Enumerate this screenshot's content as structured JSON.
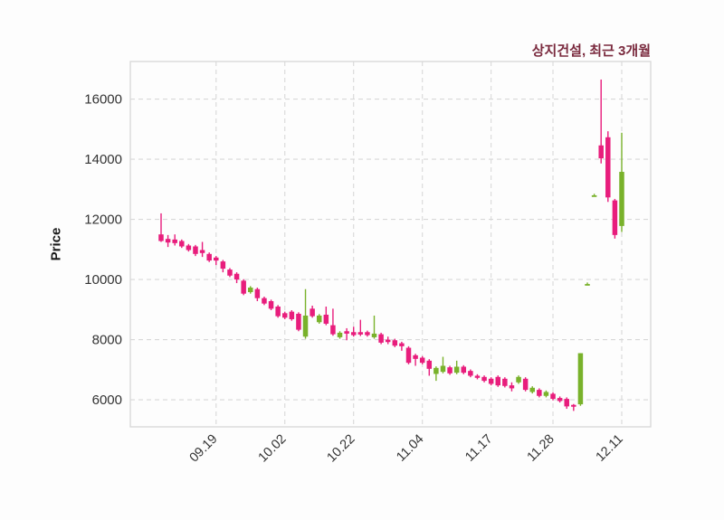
{
  "chart_data": {
    "type": "candlestick",
    "title": "상지건설, 최근 3개월",
    "ylabel": "Price",
    "xlabel": "",
    "legend": null,
    "grid": "dashed",
    "ylim": [
      5100,
      17250
    ],
    "y_ticks": [
      6000,
      8000,
      10000,
      12000,
      14000,
      16000
    ],
    "x_ticks": [
      {
        "label": "09.19",
        "index": 8
      },
      {
        "label": "10.02",
        "index": 18
      },
      {
        "label": "10.22",
        "index": 28
      },
      {
        "label": "11.04",
        "index": 38
      },
      {
        "label": "11.17",
        "index": 48
      },
      {
        "label": "11.28",
        "index": 57
      },
      {
        "label": "12.11",
        "index": 67
      }
    ],
    "colors": {
      "up": "#79B22B",
      "down": "#E81D7C",
      "title_text": "#7A2A3E",
      "axis_text": "#333333",
      "grid_line": "#D8D8D8",
      "plot_border": "#D9D9D9",
      "background": "#FDFDFD"
    },
    "candle_format": [
      "open",
      "high",
      "low",
      "close"
    ],
    "candles": [
      [
        11500,
        12200,
        11250,
        11280
      ],
      [
        11350,
        11480,
        11080,
        11230
      ],
      [
        11330,
        11500,
        11130,
        11210
      ],
      [
        11280,
        11330,
        11050,
        11100
      ],
      [
        11130,
        11180,
        10930,
        10980
      ],
      [
        11100,
        11150,
        10780,
        10850
      ],
      [
        10980,
        11250,
        10750,
        10880
      ],
      [
        10850,
        10900,
        10580,
        10630
      ],
      [
        10730,
        10780,
        10480,
        10630
      ],
      [
        10600,
        10650,
        10240,
        10360
      ],
      [
        10330,
        10380,
        10080,
        10130
      ],
      [
        10190,
        10240,
        9880,
        10000
      ],
      [
        9960,
        10010,
        9480,
        9530
      ],
      [
        9580,
        9780,
        9530,
        9730
      ],
      [
        9680,
        9730,
        9280,
        9380
      ],
      [
        9380,
        9430,
        9150,
        9200
      ],
      [
        9280,
        9330,
        8980,
        9030
      ],
      [
        9100,
        9150,
        8730,
        8780
      ],
      [
        8880,
        8930,
        8680,
        8730
      ],
      [
        8930,
        8980,
        8630,
        8680
      ],
      [
        8860,
        8910,
        8280,
        8330
      ],
      [
        8100,
        9680,
        8030,
        8800
      ],
      [
        9030,
        9130,
        8730,
        8780
      ],
      [
        8580,
        8850,
        8530,
        8800
      ],
      [
        8830,
        9100,
        8480,
        8530
      ],
      [
        8480,
        9030,
        8130,
        8180
      ],
      [
        8080,
        8280,
        8030,
        8230
      ],
      [
        8280,
        8380,
        7980,
        8200
      ],
      [
        8250,
        8430,
        8100,
        8150
      ],
      [
        8250,
        8660,
        8120,
        8170
      ],
      [
        8250,
        8300,
        8100,
        8150
      ],
      [
        8080,
        8800,
        8030,
        8200
      ],
      [
        8180,
        8230,
        7850,
        7900
      ],
      [
        8000,
        8100,
        7850,
        7920
      ],
      [
        7980,
        8030,
        7750,
        7800
      ],
      [
        7880,
        7930,
        7630,
        7780
      ],
      [
        7730,
        7780,
        7180,
        7230
      ],
      [
        7480,
        7530,
        7130,
        7360
      ],
      [
        7400,
        7450,
        7180,
        7230
      ],
      [
        7300,
        7350,
        6800,
        7030
      ],
      [
        6860,
        7110,
        6630,
        7060
      ],
      [
        6930,
        7430,
        6880,
        7130
      ],
      [
        7080,
        7130,
        6830,
        6880
      ],
      [
        6900,
        7300,
        6850,
        7100
      ],
      [
        7100,
        7150,
        6850,
        6900
      ],
      [
        6960,
        7010,
        6750,
        6800
      ],
      [
        6800,
        6850,
        6680,
        6730
      ],
      [
        6760,
        6810,
        6580,
        6630
      ],
      [
        6700,
        6750,
        6480,
        6530
      ],
      [
        6760,
        6810,
        6430,
        6480
      ],
      [
        6700,
        6750,
        6410,
        6460
      ],
      [
        6480,
        6580,
        6280,
        6380
      ],
      [
        6580,
        6810,
        6530,
        6760
      ],
      [
        6700,
        6750,
        6280,
        6330
      ],
      [
        6260,
        6450,
        6210,
        6400
      ],
      [
        6330,
        6380,
        6080,
        6130
      ],
      [
        6130,
        6310,
        6080,
        6260
      ],
      [
        6200,
        6250,
        5980,
        6030
      ],
      [
        6060,
        6110,
        5910,
        5960
      ],
      [
        6030,
        6080,
        5700,
        5780
      ],
      [
        5830,
        5860,
        5630,
        5770
      ],
      [
        5850,
        7550,
        5800,
        7550
      ],
      [
        9850,
        9900,
        9820,
        9850
      ],
      [
        12800,
        12850,
        12770,
        12800
      ],
      [
        14460,
        16650,
        13860,
        14030
      ],
      [
        14730,
        14930,
        12580,
        12730
      ],
      [
        12630,
        12680,
        11360,
        11480
      ],
      [
        11780,
        14880,
        11580,
        13580
      ]
    ]
  }
}
